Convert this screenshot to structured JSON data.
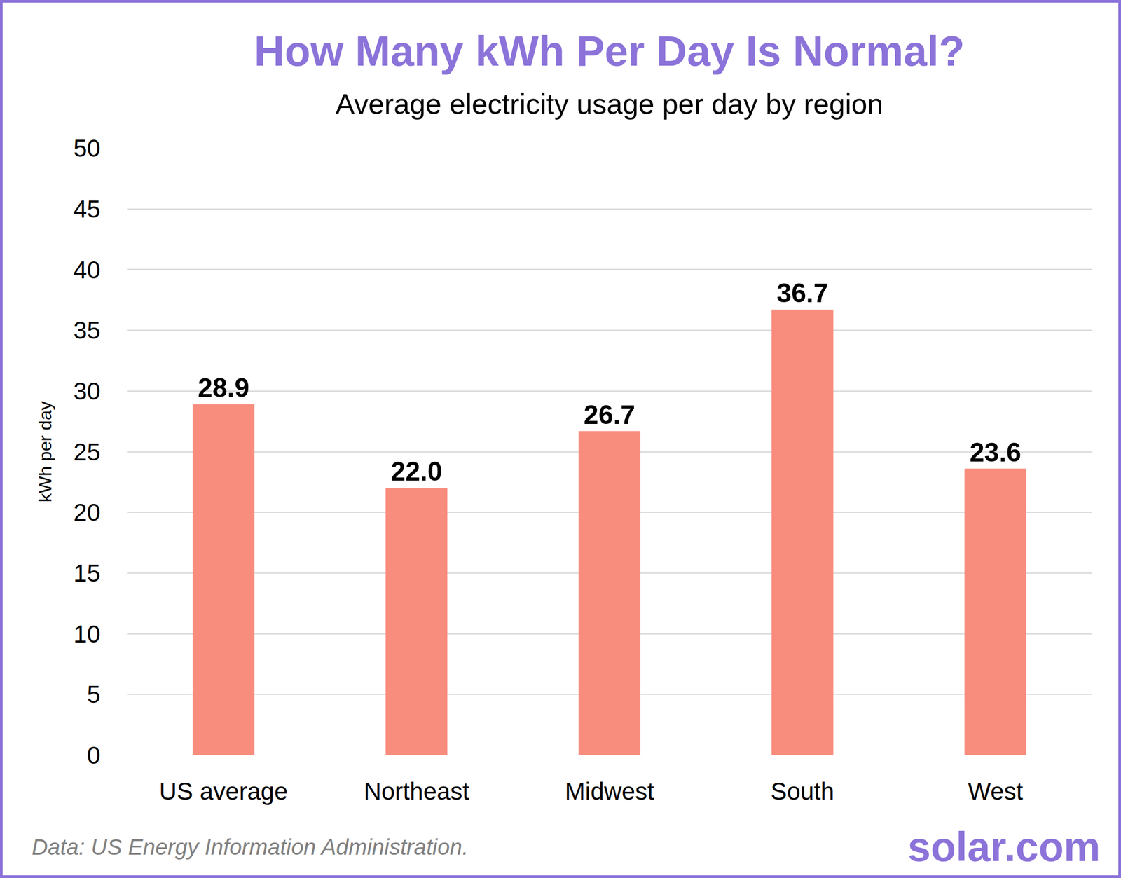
{
  "chart_data": {
    "type": "bar",
    "title": "How Many kWh Per Day Is Normal?",
    "subtitle": "Average electricity usage per day by region",
    "y_label": "kWh per day",
    "categories": [
      "US average",
      "Northeast",
      "Midwest",
      "South",
      "West"
    ],
    "values": [
      28.9,
      22.0,
      26.7,
      36.7,
      23.6
    ],
    "value_labels": [
      "28.9",
      "22.0",
      "26.7",
      "36.7",
      "23.6"
    ],
    "color": "#f88d7e",
    "ylim": [
      0,
      50
    ],
    "yticks": [
      0,
      5,
      10,
      15,
      20,
      25,
      30,
      35,
      40,
      45,
      50
    ],
    "grid": true,
    "data_labels": true,
    "source": "Data: US Energy Information Administration.",
    "logo": "solar.com"
  }
}
